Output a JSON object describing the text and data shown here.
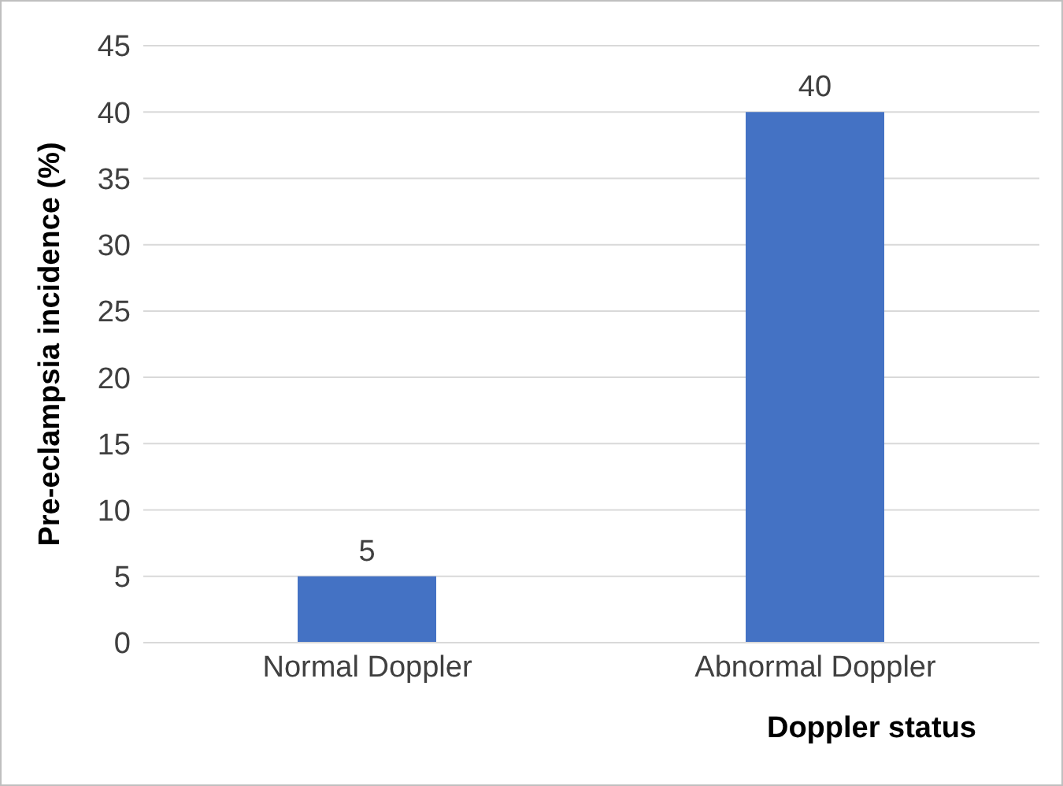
{
  "chart_data": {
    "type": "bar",
    "categories": [
      "Normal Doppler",
      "Abnormal Doppler"
    ],
    "values": [
      5,
      40
    ],
    "color": "#4472c4",
    "xlabel": "Doppler status",
    "ylabel": "Pre-eclampsia incidence (%)",
    "ylim": [
      0,
      45
    ],
    "yticks": [
      0,
      5,
      10,
      15,
      20,
      25,
      30,
      35,
      40,
      45
    ],
    "grid": "y",
    "data_labels": true,
    "legend": false
  }
}
